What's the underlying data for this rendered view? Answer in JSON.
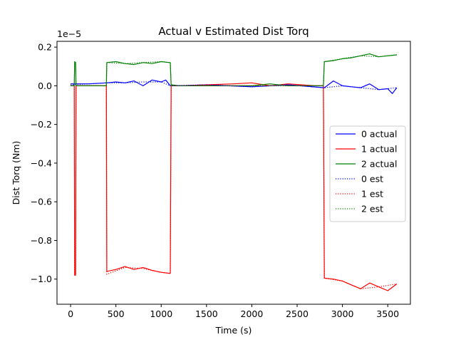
{
  "chart_data": {
    "type": "line",
    "title": "Actual v Estimated Dist Torq",
    "xlabel": "Time (s)",
    "ylabel": "Dist Torq (Nm)",
    "y_offset_text": "1e−5",
    "xlim": [
      -150,
      3750
    ],
    "ylim": [
      -1.13,
      0.23
    ],
    "xticks": [
      0,
      500,
      1000,
      1500,
      2000,
      2500,
      3000,
      3500
    ],
    "xtick_labels": [
      "0",
      "500",
      "1000",
      "1500",
      "2000",
      "2500",
      "3000",
      "3500"
    ],
    "yticks": [
      0.2,
      0.0,
      -0.2,
      -0.4,
      -0.6,
      -0.8,
      -1.0
    ],
    "ytick_labels": [
      "0.2",
      "0.0",
      "−0.2",
      "−0.4",
      "−0.6",
      "−0.8",
      "−1.0"
    ],
    "grid": false,
    "legend_position": "center-right",
    "series": [
      {
        "name": "0 actual",
        "color": "#0000ff",
        "style": "solid",
        "x": [
          0,
          200,
          400,
          500,
          600,
          700,
          800,
          900,
          1000,
          1050,
          1100,
          1200,
          1500,
          2000,
          2400,
          2800,
          2900,
          3000,
          3100,
          3200,
          3300,
          3400,
          3500,
          3550,
          3600
        ],
        "y": [
          0.01,
          0.01,
          0.015,
          0.02,
          0.015,
          0.025,
          0.0,
          0.03,
          0.02,
          0.03,
          0.0,
          0.0,
          0.005,
          -0.005,
          0.005,
          -0.01,
          0.025,
          0.0,
          -0.005,
          -0.01,
          0.01,
          -0.02,
          -0.015,
          -0.04,
          -0.01
        ]
      },
      {
        "name": "1 actual",
        "color": "#ff0000",
        "style": "solid",
        "x": [
          0,
          20,
          40,
          45,
          55,
          60,
          80,
          380,
          395,
          400,
          500,
          600,
          700,
          800,
          900,
          1000,
          1090,
          1100,
          1110,
          1200,
          1500,
          1800,
          2000,
          2200,
          2400,
          2700,
          2790,
          2800,
          2900,
          3000,
          3100,
          3200,
          3300,
          3400,
          3500,
          3600
        ],
        "y": [
          0.0,
          0.0,
          0.0,
          -0.98,
          -0.98,
          0.0,
          0.0,
          0.0,
          0.0,
          -0.96,
          -0.95,
          -0.935,
          -0.95,
          -0.94,
          -0.955,
          -0.965,
          -0.97,
          -0.97,
          0.0,
          0.0,
          0.005,
          0.01,
          0.015,
          0.0,
          0.01,
          0.0,
          0.0,
          -0.995,
          -1.0,
          -1.01,
          -1.03,
          -1.05,
          -1.02,
          -1.04,
          -1.06,
          -1.025
        ]
      },
      {
        "name": "2 actual",
        "color": "#008000",
        "style": "solid",
        "x": [
          0,
          20,
          40,
          45,
          55,
          60,
          80,
          380,
          395,
          400,
          500,
          600,
          700,
          800,
          900,
          1000,
          1090,
          1100,
          1110,
          1200,
          1500,
          1800,
          2000,
          2200,
          2400,
          2700,
          2790,
          2800,
          2900,
          3000,
          3100,
          3200,
          3300,
          3400,
          3500,
          3600
        ],
        "y": [
          0.0,
          0.0,
          0.0,
          0.125,
          0.12,
          0.0,
          0.0,
          0.0,
          0.0,
          0.12,
          0.125,
          0.115,
          0.11,
          0.12,
          0.115,
          0.125,
          0.12,
          0.12,
          0.005,
          0.0,
          0.0,
          0.0,
          0.0,
          0.01,
          0.0,
          0.0,
          0.0,
          0.125,
          0.13,
          0.14,
          0.145,
          0.155,
          0.165,
          0.15,
          0.155,
          0.16
        ]
      },
      {
        "name": "0 est",
        "color": "#0000ff",
        "style": "dotted",
        "x": [
          0,
          200,
          400,
          600,
          800,
          1000,
          1100,
          1500,
          2000,
          2400,
          2800,
          3000,
          3200,
          3400,
          3600
        ],
        "y": [
          0.005,
          0.01,
          0.015,
          0.015,
          0.02,
          0.02,
          0.0,
          0.005,
          -0.005,
          0.005,
          -0.01,
          0.0,
          -0.01,
          -0.02,
          -0.01
        ]
      },
      {
        "name": "1 est",
        "color": "#ff0000",
        "style": "dotted",
        "x": [
          0,
          40,
          45,
          55,
          60,
          395,
          400,
          600,
          800,
          1000,
          1100,
          1110,
          2790,
          2800,
          3000,
          3200,
          3400,
          3600
        ],
        "y": [
          0.0,
          0.0,
          -0.975,
          -0.975,
          0.0,
          0.0,
          -0.975,
          -0.94,
          -0.945,
          -0.965,
          -0.97,
          0.0,
          0.0,
          -0.995,
          -1.01,
          -1.05,
          -1.04,
          -1.025
        ]
      },
      {
        "name": "2 est",
        "color": "#008000",
        "style": "dotted",
        "x": [
          0,
          40,
          45,
          55,
          60,
          395,
          400,
          600,
          800,
          1000,
          1100,
          1110,
          2790,
          2800,
          3000,
          3200,
          3400,
          3600
        ],
        "y": [
          0.0,
          0.0,
          0.12,
          0.12,
          0.0,
          0.0,
          0.12,
          0.115,
          0.12,
          0.125,
          0.12,
          0.0,
          0.0,
          0.125,
          0.14,
          0.155,
          0.15,
          0.16
        ]
      }
    ]
  }
}
